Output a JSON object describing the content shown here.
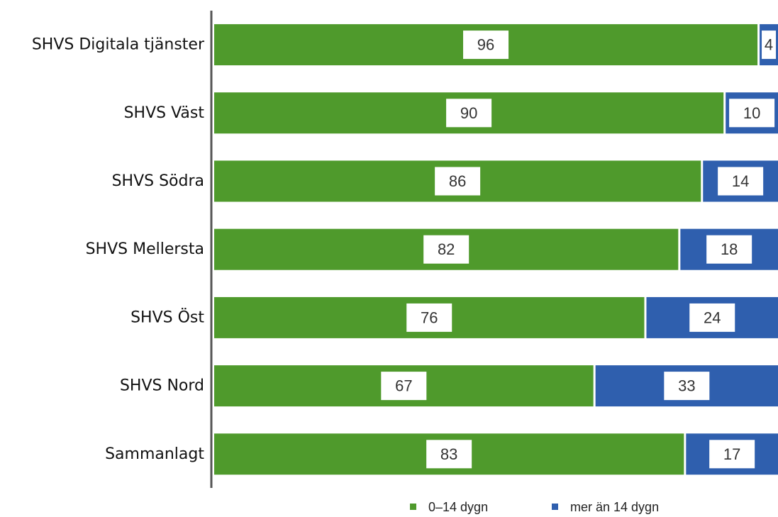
{
  "chart_data": {
    "type": "stacked-bar-horizontal",
    "categories": [
      "SHVS Digitala tjänster",
      "SHVS Väst",
      "SHVS Södra",
      "SHVS Mellersta",
      "SHVS Öst",
      "SHVS Nord",
      "Sammanlagt"
    ],
    "series": [
      {
        "name": "0–14 dygn",
        "color": "#4f9a2c",
        "values": [
          96,
          90,
          86,
          82,
          76,
          67,
          83
        ]
      },
      {
        "name": "mer än 14 dygn",
        "color": "#2f5fae",
        "values": [
          4,
          10,
          14,
          18,
          24,
          33,
          17
        ]
      }
    ],
    "xlim": [
      0,
      100
    ]
  }
}
